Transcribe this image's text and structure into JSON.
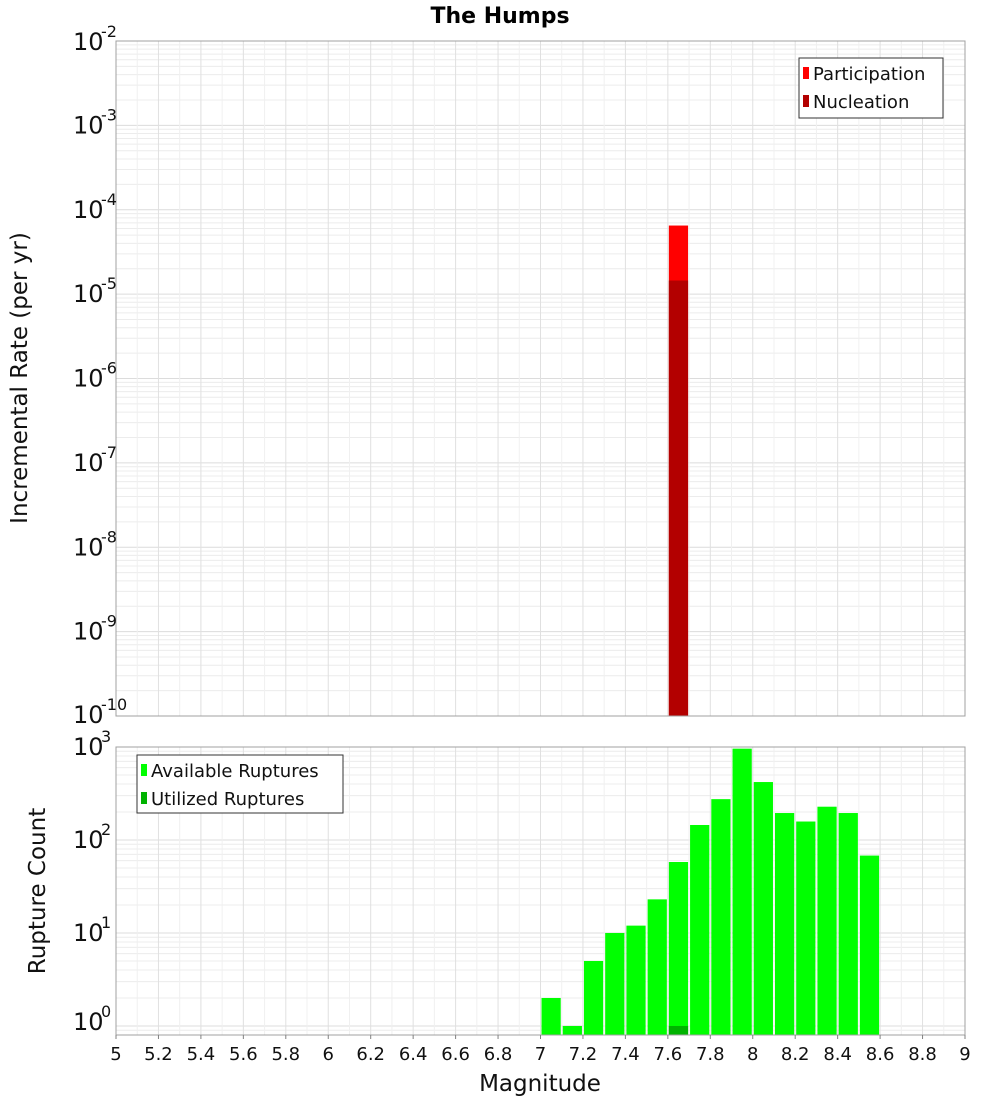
{
  "chart_data": [
    {
      "type": "bar",
      "title": "The Humps",
      "ylabel": "Incremental Rate (per yr)",
      "yscale": "log",
      "ylim": [
        1e-10,
        0.01
      ],
      "ytick_labels": [
        {
          "value": 0.01,
          "base": "10",
          "exp": "-2"
        },
        {
          "value": 0.001,
          "base": "10",
          "exp": "-3"
        },
        {
          "value": 0.0001,
          "base": "10",
          "exp": "-4"
        },
        {
          "value": 1e-05,
          "base": "10",
          "exp": "-5"
        },
        {
          "value": 1e-06,
          "base": "10",
          "exp": "-6"
        },
        {
          "value": 1e-07,
          "base": "10",
          "exp": "-7"
        },
        {
          "value": 1e-08,
          "base": "10",
          "exp": "-8"
        },
        {
          "value": 1e-09,
          "base": "10",
          "exp": "-9"
        },
        {
          "value": 1e-10,
          "base": "10",
          "exp": "-10"
        }
      ],
      "xlim": [
        5,
        9
      ],
      "bar_width": 0.1,
      "legend_position": "top-right",
      "grid": true,
      "series": [
        {
          "name": "Participation",
          "color": "#ff0000",
          "x": [
            7.65
          ],
          "values": [
            6.5e-05
          ]
        },
        {
          "name": "Nucleation",
          "color": "#b30000",
          "x": [
            7.65
          ],
          "values": [
            1.45e-05
          ]
        }
      ]
    },
    {
      "type": "bar",
      "ylabel": "Rupture Count",
      "xlabel": "Magnitude",
      "yscale": "log",
      "ylim": [
        0.8,
        1000
      ],
      "ytick_labels": [
        {
          "value": 1000,
          "base": "10",
          "exp": "3"
        },
        {
          "value": 100,
          "base": "10",
          "exp": "2"
        },
        {
          "value": 10,
          "base": "10",
          "exp": "1"
        },
        {
          "value": 1,
          "base": "10",
          "exp": "0"
        }
      ],
      "xlim": [
        5,
        9
      ],
      "xticks": [
        "5",
        "5.2",
        "5.4",
        "5.6",
        "5.8",
        "6",
        "6.2",
        "6.4",
        "6.6",
        "6.8",
        "7",
        "7.2",
        "7.4",
        "7.6",
        "7.8",
        "8",
        "8.2",
        "8.4",
        "8.6",
        "8.8",
        "9"
      ],
      "bar_width": 0.1,
      "legend_position": "top-left",
      "grid": true,
      "series": [
        {
          "name": "Available Ruptures",
          "color": "#00ff00",
          "x": [
            7.05,
            7.15,
            7.25,
            7.35,
            7.45,
            7.55,
            7.65,
            7.75,
            7.85,
            7.95,
            8.05,
            8.15,
            8.25,
            8.35,
            8.45,
            8.55
          ],
          "values": [
            2,
            1,
            5,
            10,
            12,
            23,
            58,
            145,
            275,
            960,
            420,
            195,
            158,
            228,
            195,
            68
          ]
        },
        {
          "name": "Utilized Ruptures",
          "color": "#00b300",
          "x": [
            7.65
          ],
          "values": [
            1
          ]
        }
      ]
    }
  ]
}
